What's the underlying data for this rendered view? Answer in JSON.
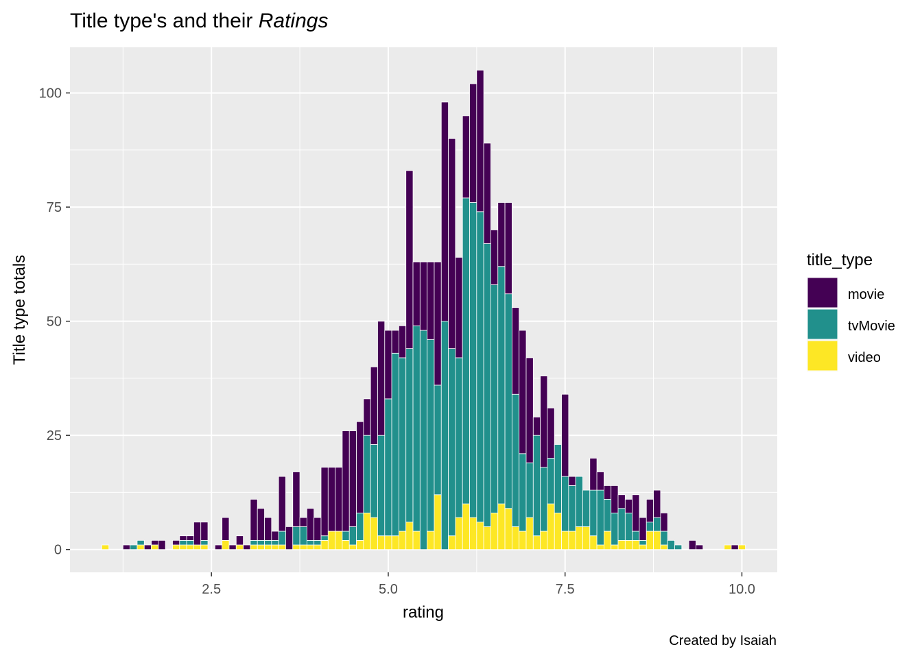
{
  "chart_data": {
    "type": "bar",
    "stacked": true,
    "title": "Title type's and their ",
    "title_emphasis": "Ratings",
    "xlabel": "rating",
    "ylabel": "Title type totals",
    "caption": "Created by Isaiah",
    "xlim": [
      0.5,
      10.5
    ],
    "ylim": [
      -5,
      110
    ],
    "xticks": [
      2.5,
      5.0,
      7.5,
      10.0
    ],
    "xtick_labels": [
      "2.5",
      "5.0",
      "7.5",
      "10.0"
    ],
    "yticks": [
      0,
      25,
      50,
      75,
      100
    ],
    "ytick_labels": [
      "0",
      "25",
      "50",
      "75",
      "100"
    ],
    "grid": true,
    "background": "#EBEBEB",
    "legend": {
      "title": "title_type",
      "placement": "right"
    },
    "x": [
      1.0,
      1.3,
      1.4,
      1.5,
      1.6,
      1.7,
      1.8,
      2.0,
      2.1,
      2.2,
      2.3,
      2.4,
      2.6,
      2.7,
      2.8,
      2.9,
      3.0,
      3.1,
      3.2,
      3.3,
      3.4,
      3.5,
      3.6,
      3.7,
      3.8,
      3.9,
      4.0,
      4.1,
      4.2,
      4.3,
      4.4,
      4.5,
      4.6,
      4.7,
      4.8,
      4.9,
      5.0,
      5.1,
      5.2,
      5.3,
      5.4,
      5.5,
      5.6,
      5.7,
      5.8,
      5.9,
      6.0,
      6.1,
      6.2,
      6.3,
      6.4,
      6.5,
      6.6,
      6.7,
      6.8,
      6.9,
      7.0,
      7.1,
      7.2,
      7.3,
      7.4,
      7.5,
      7.6,
      7.7,
      7.8,
      7.9,
      8.0,
      8.1,
      8.2,
      8.3,
      8.4,
      8.5,
      8.6,
      8.7,
      8.8,
      8.9,
      9.0,
      9.1,
      9.2,
      9.3,
      9.4,
      9.5,
      9.8,
      9.9,
      10.0
    ],
    "series": [
      {
        "name": "video",
        "color": "#FDE725",
        "values": [
          1,
          0,
          0,
          1,
          0,
          1,
          0,
          1,
          1,
          1,
          1,
          1,
          0,
          2,
          0,
          1,
          0,
          1,
          1,
          1,
          1,
          1,
          0,
          1,
          1,
          1,
          1,
          2,
          4,
          4,
          2,
          1,
          2,
          8,
          7,
          3,
          3,
          3,
          4,
          6,
          4,
          0,
          4,
          12,
          0,
          3,
          7,
          10,
          7,
          6,
          5,
          8,
          10,
          9,
          5,
          4,
          7,
          3,
          4,
          10,
          8,
          4,
          4,
          5,
          5,
          3,
          1,
          4,
          1,
          2,
          2,
          2,
          1,
          4,
          4,
          1,
          0,
          0,
          0,
          0,
          0,
          0,
          1,
          0,
          1
        ]
      },
      {
        "name": "tvMovie",
        "color": "#21908C",
        "values": [
          0,
          0,
          1,
          1,
          0,
          0,
          0,
          0,
          1,
          1,
          0,
          1,
          0,
          0,
          0,
          0,
          0,
          1,
          1,
          1,
          1,
          3,
          0,
          4,
          4,
          1,
          1,
          1,
          0,
          0,
          2,
          4,
          6,
          17,
          16,
          22,
          30,
          40,
          38,
          38,
          45,
          48,
          42,
          24,
          50,
          41,
          35,
          67,
          69,
          68,
          62,
          50,
          52,
          47,
          29,
          17,
          12,
          22,
          14,
          10,
          15,
          12,
          10,
          11,
          8,
          10,
          12,
          7,
          7,
          7,
          6,
          2,
          1,
          2,
          3,
          3,
          2,
          1,
          0,
          0,
          0,
          0,
          0,
          0,
          0
        ]
      },
      {
        "name": "movie",
        "color": "#440154",
        "values": [
          0,
          1,
          0,
          0,
          1,
          1,
          2,
          1,
          1,
          1,
          5,
          4,
          1,
          5,
          1,
          2,
          1,
          9,
          7,
          5,
          2,
          12,
          5,
          12,
          2,
          7,
          5,
          15,
          14,
          14,
          22,
          21,
          20,
          8,
          17,
          25,
          15,
          5,
          7,
          39,
          14,
          15,
          17,
          27,
          48,
          46,
          22,
          18,
          26,
          31,
          22,
          12,
          14,
          20,
          19,
          27,
          23,
          4,
          20,
          11,
          0,
          18,
          2,
          0,
          0,
          7,
          4,
          3,
          6,
          3,
          3,
          8,
          5,
          5,
          6,
          4,
          0,
          0,
          0,
          2,
          1,
          0,
          0,
          1,
          0
        ]
      }
    ]
  }
}
